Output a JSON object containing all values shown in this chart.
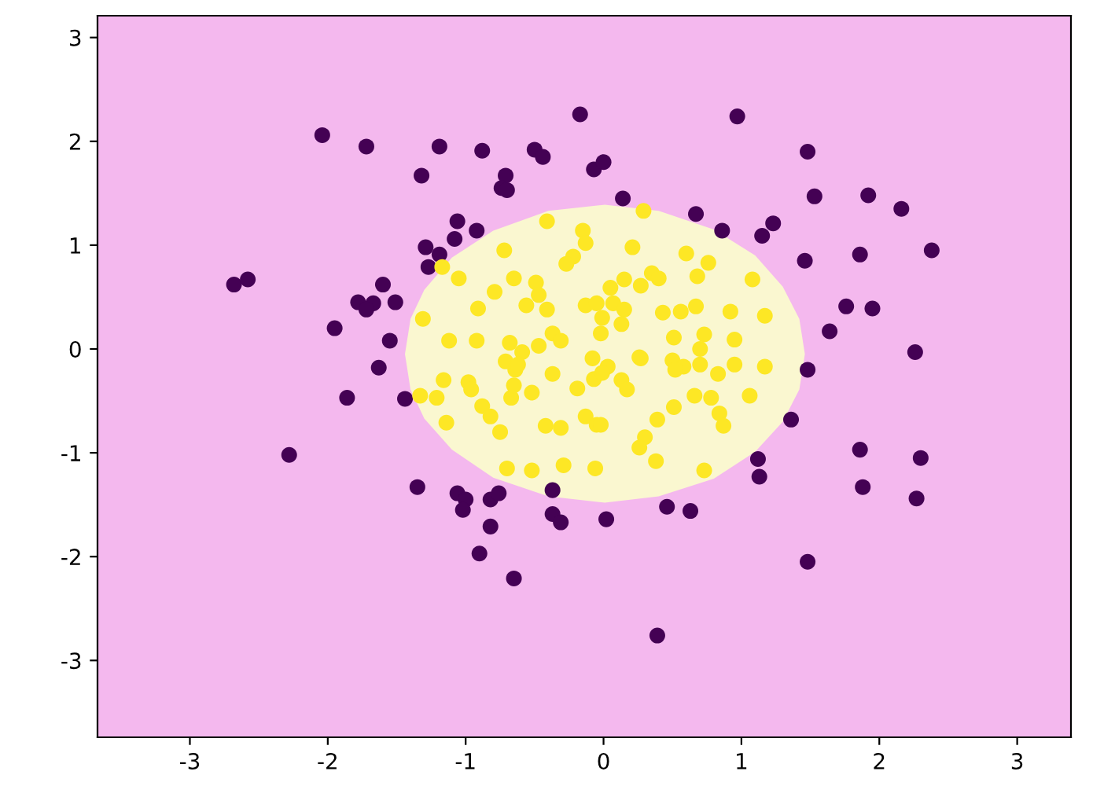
{
  "chart_data": {
    "type": "scatter",
    "xlim": [
      -3.67,
      3.39
    ],
    "ylim": [
      -3.74,
      3.21
    ],
    "xticks": [
      -3,
      -2,
      -1,
      0,
      1,
      2,
      3
    ],
    "yticks": [
      -3,
      -2,
      -1,
      0,
      1,
      2,
      3
    ],
    "grid": false,
    "legend": false,
    "marker": "circle",
    "bands": [
      {
        "axis": "y",
        "from": -3.74,
        "to": 3.21,
        "color": "#f4b8ee"
      }
    ],
    "series": [
      {
        "type": "area",
        "color": "#faf7d0",
        "marker": "none",
        "x": [
          -1.44,
          -1.4,
          -1.3,
          -1.1,
          -0.8,
          -0.4,
          0.01,
          0.4,
          0.8,
          1.1,
          1.3,
          1.42,
          1.46,
          1.42,
          1.3,
          1.1,
          0.8,
          0.4,
          0.01,
          -0.4,
          -0.8,
          -1.1,
          -1.3,
          -1.4
        ],
        "values": [
          -0.05,
          0.29,
          0.57,
          0.88,
          1.14,
          1.33,
          1.39,
          1.33,
          1.15,
          0.9,
          0.6,
          0.29,
          -0.05,
          -0.39,
          -0.7,
          -0.99,
          -1.25,
          -1.42,
          -1.48,
          -1.42,
          -1.24,
          -0.97,
          -0.67,
          -0.39
        ]
      },
      {
        "color": "#440154",
        "x": [
          -2.04,
          -1.72,
          -1.19,
          -0.88,
          -0.5,
          -0.44,
          -1.32,
          -0.71,
          -0.74,
          -0.7,
          -0.17,
          -0.07,
          0.0,
          -1.06,
          -1.08,
          -0.92,
          -1.29,
          -1.19,
          -1.27,
          -1.6,
          -1.78,
          -1.67,
          -1.72,
          -1.51,
          -1.95,
          -1.55,
          -1.63,
          -2.68,
          -2.58,
          -1.86,
          -1.44,
          -2.28,
          -1.35,
          -1.06,
          -1.0,
          -1.02,
          -0.82,
          -0.76,
          -0.82,
          -0.9,
          -0.65,
          -0.37,
          -0.37,
          -0.31,
          0.02,
          1.48,
          2.26,
          1.36,
          1.12,
          1.13,
          1.86,
          2.3,
          1.88,
          2.27,
          0.46,
          0.63,
          1.48,
          0.39,
          0.97,
          1.48,
          1.53,
          1.92,
          2.16,
          2.38,
          0.67,
          0.86,
          1.23,
          1.15,
          1.46,
          1.86,
          1.76,
          1.95,
          1.64,
          0.14
        ],
        "values": [
          2.06,
          1.95,
          1.95,
          1.91,
          1.92,
          1.85,
          1.67,
          1.67,
          1.55,
          1.53,
          2.26,
          1.73,
          1.8,
          1.23,
          1.06,
          1.14,
          0.98,
          0.91,
          0.79,
          0.62,
          0.45,
          0.44,
          0.38,
          0.45,
          0.2,
          0.08,
          -0.18,
          0.62,
          0.67,
          -0.47,
          -0.48,
          -1.02,
          -1.33,
          -1.39,
          -1.45,
          -1.55,
          -1.45,
          -1.39,
          -1.71,
          -1.97,
          -2.21,
          -1.36,
          -1.59,
          -1.67,
          -1.64,
          -0.2,
          -0.03,
          -0.68,
          -1.06,
          -1.23,
          -0.97,
          -1.05,
          -1.33,
          -1.44,
          -1.52,
          -1.56,
          -2.05,
          -2.76,
          2.24,
          1.9,
          1.47,
          1.48,
          1.35,
          0.95,
          1.3,
          1.14,
          1.21,
          1.09,
          0.85,
          0.91,
          0.41,
          0.39,
          0.17,
          1.45
        ]
      },
      {
        "color": "#fde725",
        "x": [
          -0.41,
          -0.15,
          -0.13,
          -0.72,
          -0.22,
          -0.27,
          -1.17,
          -1.05,
          -0.65,
          -0.49,
          -0.79,
          -0.47,
          -0.56,
          -0.41,
          -0.91,
          -1.31,
          -1.12,
          -0.92,
          -0.68,
          -0.59,
          -0.47,
          -0.37,
          -0.31,
          -0.13,
          -0.02,
          -0.05,
          -0.08,
          -0.71,
          -0.64,
          0.29,
          0.21,
          0.6,
          0.76,
          0.68,
          1.08,
          0.35,
          0.4,
          0.27,
          0.15,
          0.05,
          0.07,
          0.15,
          0.13,
          -0.01,
          0.43,
          0.56,
          0.67,
          0.92,
          1.17,
          0.51,
          0.73,
          0.95,
          0.7,
          0.27,
          0.5,
          0.58,
          0.7,
          0.95,
          1.17,
          0.03,
          -1.33,
          -1.21,
          -1.16,
          -1.14,
          -0.98,
          -0.96,
          -0.88,
          -0.82,
          -0.75,
          -0.67,
          -0.65,
          -0.52,
          -0.7,
          -0.52,
          -0.29,
          -0.06,
          -0.42,
          -0.31,
          -0.13,
          -0.05,
          -0.19,
          -0.07,
          -0.37,
          -0.62,
          0.26,
          -0.01,
          0.13,
          0.17,
          0.52,
          0.66,
          0.78,
          0.83,
          1.06,
          0.51,
          0.39,
          0.84,
          0.87,
          0.3,
          0.26,
          0.38,
          0.73,
          -0.02
        ],
        "values": [
          1.23,
          1.14,
          1.02,
          0.95,
          0.89,
          0.82,
          0.79,
          0.68,
          0.68,
          0.64,
          0.55,
          0.52,
          0.42,
          0.38,
          0.39,
          0.29,
          0.08,
          0.08,
          0.06,
          -0.03,
          0.03,
          0.15,
          0.08,
          0.42,
          0.15,
          0.44,
          -0.09,
          -0.12,
          -0.2,
          1.33,
          0.98,
          0.92,
          0.83,
          0.7,
          0.67,
          0.73,
          0.68,
          0.61,
          0.67,
          0.59,
          0.44,
          0.38,
          0.24,
          0.3,
          0.35,
          0.36,
          0.41,
          0.36,
          0.32,
          0.11,
          0.14,
          0.09,
          0.0,
          -0.09,
          -0.11,
          -0.17,
          -0.15,
          -0.15,
          -0.17,
          -0.17,
          -0.45,
          -0.47,
          -0.3,
          -0.71,
          -0.32,
          -0.39,
          -0.55,
          -0.65,
          -0.8,
          -0.47,
          -0.35,
          -0.42,
          -1.15,
          -1.17,
          -1.12,
          -1.15,
          -0.74,
          -0.76,
          -0.65,
          -0.73,
          -0.38,
          -0.29,
          -0.24,
          -0.15,
          -0.08,
          -0.23,
          -0.3,
          -0.39,
          -0.2,
          -0.45,
          -0.47,
          -0.24,
          -0.45,
          -0.56,
          -0.68,
          -0.62,
          -0.74,
          -0.85,
          -0.95,
          -1.08,
          -1.17,
          -0.73
        ]
      }
    ]
  }
}
